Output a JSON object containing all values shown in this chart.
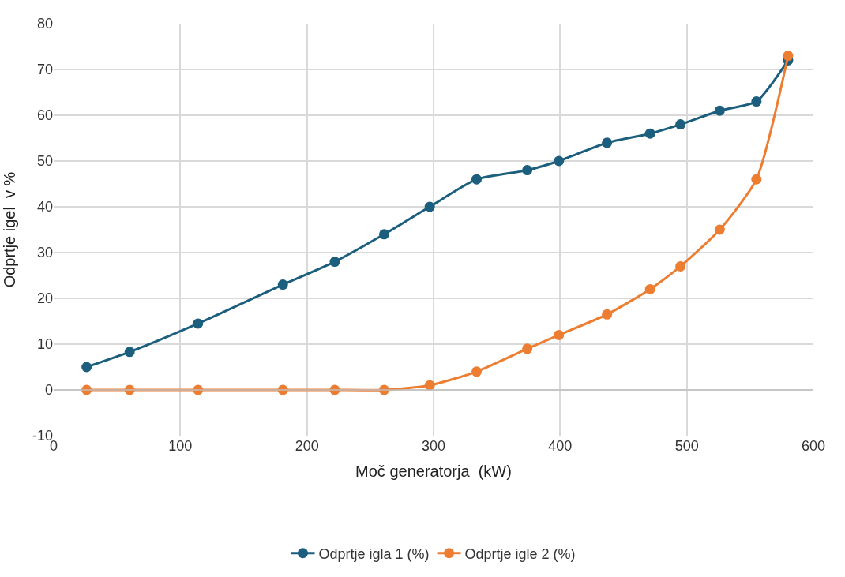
{
  "chart_data": {
    "type": "line",
    "xlabel": "Moč generatorja  (kW)",
    "ylabel": "Odprtje igel  v %",
    "x": [
      26,
      60,
      114,
      181,
      222,
      261,
      297,
      334,
      374,
      399,
      437,
      471,
      495,
      526,
      555,
      580
    ],
    "series": [
      {
        "name": "Odprtje igla 1 (%)",
        "color": "#1b5e7e",
        "values": [
          5,
          8.3,
          14.5,
          23,
          28,
          34,
          40,
          46,
          48,
          50,
          54,
          56,
          58,
          61,
          63,
          72
        ]
      },
      {
        "name": "Odprtje igle 2 (%)",
        "color": "#ed7d31",
        "values": [
          0,
          0,
          0,
          0,
          0,
          0,
          1,
          4,
          9,
          12,
          16.5,
          22,
          27,
          35,
          46,
          73
        ]
      }
    ],
    "xlim": [
      0,
      600
    ],
    "xticks": [
      0,
      100,
      200,
      300,
      400,
      500,
      600
    ],
    "ylim": [
      -10,
      80
    ],
    "yticks": [
      -10,
      0,
      10,
      20,
      30,
      40,
      50,
      60,
      70,
      80
    ],
    "grid": true,
    "legend": "bottom",
    "marker": "circle",
    "line_style": "solid"
  }
}
